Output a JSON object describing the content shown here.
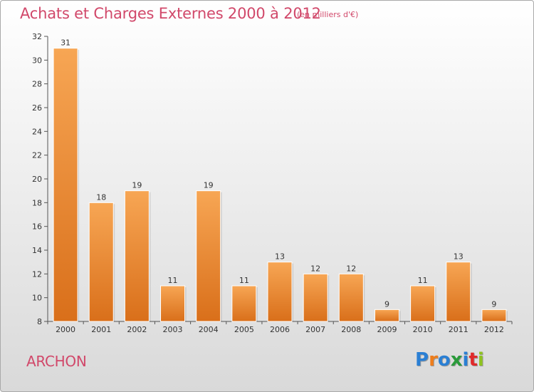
{
  "header": {
    "title": "Achats et Charges Externes 2000 à 2012",
    "subtitle": "(en milliers d'€)"
  },
  "footer": {
    "place": "ARCHON",
    "logo": "Proxiti"
  },
  "colors": {
    "title": "#d1486a",
    "bar_light": "#f7a654",
    "bar_dark": "#d96f1a",
    "logo_letters": [
      "#2a7fd4",
      "#ee7d1c",
      "#2a7fd4",
      "#2a9a3a",
      "#2a7fd4",
      "#e02a2a",
      "#8fc31f"
    ]
  },
  "chart_data": {
    "type": "bar",
    "categories": [
      "2000",
      "2001",
      "2002",
      "2003",
      "2004",
      "2005",
      "2006",
      "2007",
      "2008",
      "2009",
      "2010",
      "2011",
      "2012"
    ],
    "values": [
      31,
      18,
      19,
      11,
      19,
      11,
      13,
      12,
      12,
      9,
      11,
      13,
      9
    ],
    "value_labels": [
      "31",
      "18",
      "19",
      "11",
      "19",
      "11",
      "13",
      "12",
      "12",
      "9",
      "11",
      "13",
      "9"
    ],
    "ylim": [
      8,
      32
    ],
    "yticks": [
      8,
      10,
      12,
      14,
      16,
      18,
      20,
      22,
      24,
      26,
      28,
      30,
      32
    ],
    "grid": false,
    "xlabel": "",
    "ylabel": ""
  }
}
